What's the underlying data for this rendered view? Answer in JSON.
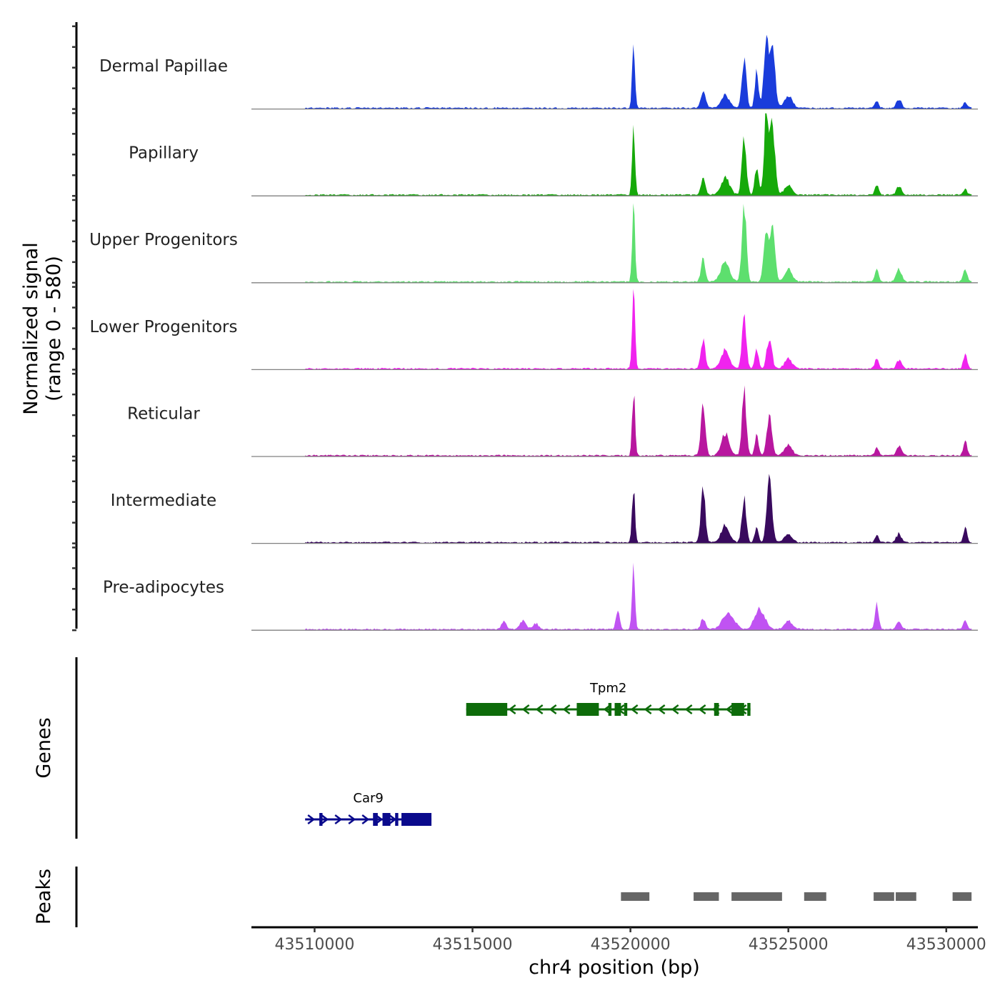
{
  "chart_data": {
    "type": "area",
    "title": "",
    "xlabel": "chr4 position (bp)",
    "xlim": [
      43508000,
      43531000
    ],
    "x_ticks": [
      "43510000",
      "43515000",
      "43520000",
      "43525000",
      "43530000"
    ],
    "x_tick_values": [
      43510000,
      43515000,
      43520000,
      43525000,
      43530000
    ],
    "signal_ylabel_line1": "Normalized signal",
    "signal_ylabel_line2": "(range 0 - 580)",
    "ylim": [
      0,
      580
    ],
    "genes_label": "Genes",
    "peaks_label": "Peaks",
    "signal_region": [
      43509700,
      43530800
    ],
    "tracks": [
      {
        "name": "Dermal Papillae",
        "color": "#1A3CDB",
        "peaks": [
          [
            43520100,
            440,
            45
          ],
          [
            43522300,
            120,
            80
          ],
          [
            43523000,
            90,
            130
          ],
          [
            43523600,
            360,
            70
          ],
          [
            43524000,
            260,
            60
          ],
          [
            43524300,
            540,
            70
          ],
          [
            43524500,
            450,
            80
          ],
          [
            43525000,
            80,
            130
          ],
          [
            43527800,
            50,
            60
          ],
          [
            43528500,
            60,
            80
          ],
          [
            43530600,
            45,
            60
          ]
        ]
      },
      {
        "name": "Papillary",
        "color": "#16A90A",
        "peaks": [
          [
            43520100,
            460,
            45
          ],
          [
            43522300,
            120,
            70
          ],
          [
            43523000,
            120,
            140
          ],
          [
            43523600,
            410,
            70
          ],
          [
            43524000,
            200,
            60
          ],
          [
            43524300,
            560,
            70
          ],
          [
            43524500,
            500,
            80
          ],
          [
            43525000,
            70,
            120
          ],
          [
            43527800,
            65,
            60
          ],
          [
            43528500,
            60,
            80
          ],
          [
            43530600,
            40,
            60
          ]
        ]
      },
      {
        "name": "Upper Progenitors",
        "color": "#5DDF6E",
        "peaks": [
          [
            43520100,
            550,
            45
          ],
          [
            43522300,
            150,
            70
          ],
          [
            43523000,
            140,
            140
          ],
          [
            43523600,
            560,
            70
          ],
          [
            43524300,
            350,
            80
          ],
          [
            43524500,
            360,
            80
          ],
          [
            43525000,
            90,
            120
          ],
          [
            43527800,
            85,
            60
          ],
          [
            43528500,
            90,
            80
          ],
          [
            43530600,
            90,
            60
          ]
        ]
      },
      {
        "name": "Lower Progenitors",
        "color": "#F023EE",
        "peaks": [
          [
            43520100,
            570,
            45
          ],
          [
            43522300,
            200,
            70
          ],
          [
            43523000,
            130,
            130
          ],
          [
            43523600,
            360,
            70
          ],
          [
            43524000,
            130,
            60
          ],
          [
            43524400,
            220,
            80
          ],
          [
            43525000,
            70,
            120
          ],
          [
            43527800,
            70,
            60
          ],
          [
            43528500,
            60,
            80
          ],
          [
            43530600,
            100,
            60
          ]
        ]
      },
      {
        "name": "Reticular",
        "color": "#B8179F",
        "peaks": [
          [
            43520100,
            460,
            45
          ],
          [
            43522300,
            340,
            70
          ],
          [
            43523000,
            150,
            130
          ],
          [
            43523600,
            450,
            70
          ],
          [
            43524000,
            140,
            60
          ],
          [
            43524400,
            270,
            80
          ],
          [
            43525000,
            70,
            120
          ],
          [
            43527800,
            60,
            60
          ],
          [
            43528500,
            70,
            80
          ],
          [
            43530600,
            100,
            60
          ]
        ]
      },
      {
        "name": "Intermediate",
        "color": "#390A5E",
        "peaks": [
          [
            43520100,
            400,
            45
          ],
          [
            43522300,
            380,
            70
          ],
          [
            43523000,
            120,
            130
          ],
          [
            43523600,
            300,
            70
          ],
          [
            43524000,
            100,
            60
          ],
          [
            43524400,
            470,
            80
          ],
          [
            43525000,
            60,
            120
          ],
          [
            43527800,
            50,
            60
          ],
          [
            43528500,
            60,
            80
          ],
          [
            43530600,
            100,
            60
          ]
        ]
      },
      {
        "name": "Pre-adipocytes",
        "color": "#C053F2",
        "peaks": [
          [
            43516000,
            50,
            80
          ],
          [
            43516600,
            60,
            90
          ],
          [
            43517000,
            40,
            90
          ],
          [
            43519600,
            140,
            60
          ],
          [
            43520100,
            450,
            45
          ],
          [
            43522300,
            80,
            70
          ],
          [
            43523100,
            120,
            180
          ],
          [
            43524100,
            140,
            160
          ],
          [
            43525000,
            60,
            120
          ],
          [
            43527800,
            180,
            60
          ],
          [
            43528500,
            50,
            80
          ],
          [
            43530600,
            60,
            60
          ]
        ]
      }
    ],
    "genes": [
      {
        "name": "Car9",
        "color": "#0A0A8C",
        "strand": "+",
        "start": 43509700,
        "end": 43513700,
        "exons": [
          [
            43510150,
            43510250
          ],
          [
            43511850,
            43512000
          ],
          [
            43512150,
            43512400
          ],
          [
            43512550,
            43512650
          ],
          [
            43512750,
            43513700
          ]
        ]
      },
      {
        "name": "Tpm2",
        "color": "#0D6B0A",
        "strand": "-",
        "start": 43514800,
        "end": 43523800,
        "exons": [
          [
            43514800,
            43516100
          ],
          [
            43518300,
            43519000
          ],
          [
            43519300,
            43519400
          ],
          [
            43519500,
            43519700
          ],
          [
            43519800,
            43519900
          ],
          [
            43522650,
            43522800
          ],
          [
            43523200,
            43523600
          ],
          [
            43523700,
            43523800
          ]
        ]
      }
    ],
    "peak_regions": [
      [
        43519700,
        43520600
      ],
      [
        43522000,
        43522800
      ],
      [
        43523200,
        43524800
      ],
      [
        43525500,
        43526200
      ],
      [
        43527700,
        43528350
      ],
      [
        43528400,
        43529050
      ],
      [
        43530200,
        43530800
      ]
    ]
  }
}
